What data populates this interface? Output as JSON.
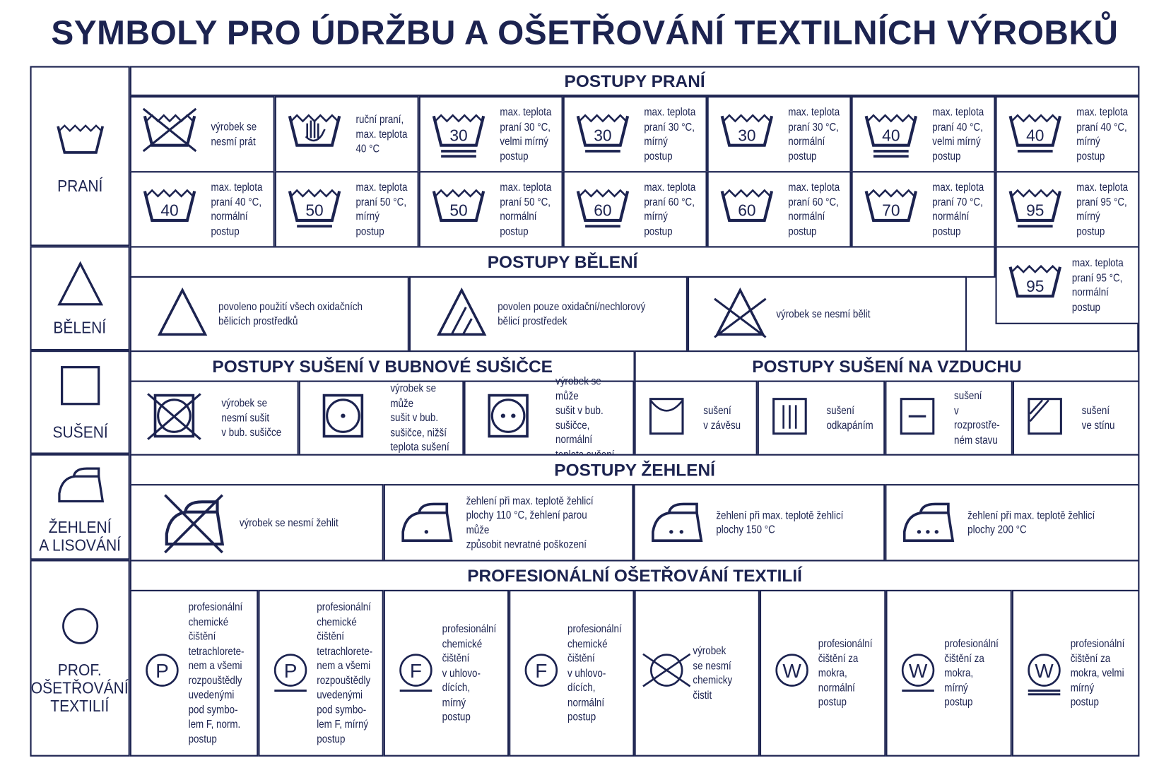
{
  "title": "SYMBOLY PRO ÚDRŽBU A OŠETŘOVÁNÍ TEXTILNÍCH VÝROBKŮ",
  "colors": {
    "ink": "#1c2350",
    "background": "#ffffff"
  },
  "categories": [
    {
      "label": "PRANÍ",
      "icon": "washtub-icon"
    },
    {
      "label": "BĚLENÍ",
      "icon": "triangle-icon"
    },
    {
      "label": "SUŠENÍ",
      "icon": "square-icon"
    },
    {
      "label": "ŽEHLENÍ\nA LISOVÁNÍ",
      "icon": "iron-icon"
    },
    {
      "label": "PROF.\nOŠETŘOVÁNÍ\nTEXTILIÍ",
      "icon": "circle-icon"
    }
  ],
  "prani": {
    "header": "POSTUPY PRANÍ",
    "items": [
      {
        "symbol": {
          "type": "tub",
          "cross": true
        },
        "text": "výrobek se\nnesmí prát"
      },
      {
        "symbol": {
          "type": "tub",
          "hand": true
        },
        "text": "ruční praní,\nmax. teplota\n40 °C"
      },
      {
        "symbol": {
          "type": "tub",
          "temp": "30",
          "bars": 2
        },
        "text": "max. teplota\npraní 30 °C,\nvelmi mírný\npostup"
      },
      {
        "symbol": {
          "type": "tub",
          "temp": "30",
          "bars": 1
        },
        "text": "max. teplota\npraní 30 °C,\nmírný postup"
      },
      {
        "symbol": {
          "type": "tub",
          "temp": "30",
          "bars": 0
        },
        "text": "max. teplota\npraní 30 °C,\nnormální\npostup"
      },
      {
        "symbol": {
          "type": "tub",
          "temp": "40",
          "bars": 2
        },
        "text": "max. teplota\npraní 40 °C,\nvelmi mírný\npostup"
      },
      {
        "symbol": {
          "type": "tub",
          "temp": "40",
          "bars": 1
        },
        "text": "max. teplota\npraní 40 °C,\nmírný postup"
      },
      {
        "symbol": {
          "type": "tub",
          "temp": "40",
          "bars": 0
        },
        "text": "max. teplota\npraní 40 °C,\nnormální\npostup"
      },
      {
        "symbol": {
          "type": "tub",
          "temp": "50",
          "bars": 1
        },
        "text": "max. teplota\npraní 50 °C,\nmírný postup"
      },
      {
        "symbol": {
          "type": "tub",
          "temp": "50",
          "bars": 0
        },
        "text": "max. teplota\npraní 50 °C,\nnormální\npostup"
      },
      {
        "symbol": {
          "type": "tub",
          "temp": "60",
          "bars": 1
        },
        "text": "max. teplota\npraní 60 °C,\nmírný postup"
      },
      {
        "symbol": {
          "type": "tub",
          "temp": "60",
          "bars": 0
        },
        "text": "max. teplota\npraní 60 °C,\nnormální\npostup"
      },
      {
        "symbol": {
          "type": "tub",
          "temp": "70",
          "bars": 0
        },
        "text": "max. teplota\npraní 70 °C,\nnormální\npostup"
      },
      {
        "symbol": {
          "type": "tub",
          "temp": "95",
          "bars": 1
        },
        "text": "max. teplota\npraní 95 °C,\nmírný postup"
      },
      {
        "symbol": {
          "type": "tub",
          "temp": "95",
          "bars": 0
        },
        "text": "max. teplota\npraní 95 °C,\nnormální\npostup"
      }
    ]
  },
  "beleni": {
    "header": "POSTUPY BĚLENÍ",
    "items": [
      {
        "symbol": {
          "type": "triangle"
        },
        "text": "povoleno použití všech oxidačních\nbělicích prostředků"
      },
      {
        "symbol": {
          "type": "triangle",
          "stripes": true
        },
        "text": "povolen pouze oxidační/nechlorový\nbělicí prostředek"
      },
      {
        "symbol": {
          "type": "triangle",
          "cross": true
        },
        "text": "výrobek se nesmí bělit"
      }
    ]
  },
  "suseni": {
    "header_tumble": "POSTUPY SUŠENÍ V BUBNOVÉ SUŠIČCE",
    "header_air": "POSTUPY SUŠENÍ NA VZDUCHU",
    "items": [
      {
        "symbol": {
          "type": "tumble",
          "cross": true
        },
        "text": "výrobek se\nnesmí sušit\nv bub. sušičce"
      },
      {
        "symbol": {
          "type": "tumble",
          "dots": 1
        },
        "text": "výrobek se může\nsušit v bub.\nsušičce, nižší\nteplota sušení"
      },
      {
        "symbol": {
          "type": "tumble",
          "dots": 2
        },
        "text": "výrobek se může\nsušit v bub.\nsušičce, normální\nteplota sušení"
      },
      {
        "symbol": {
          "type": "air",
          "mode": "hang"
        },
        "text": "sušení\nv závěsu"
      },
      {
        "symbol": {
          "type": "air",
          "mode": "drip"
        },
        "text": "sušení\nodkapáním"
      },
      {
        "symbol": {
          "type": "air",
          "mode": "flat"
        },
        "text": "sušení\nv rozprostře-\nném stavu"
      },
      {
        "symbol": {
          "type": "air",
          "mode": "shade"
        },
        "text": "sušení\nve stínu"
      }
    ]
  },
  "zehleni": {
    "header": "POSTUPY ŽEHLENÍ",
    "items": [
      {
        "symbol": {
          "type": "iron",
          "cross": true
        },
        "text": "výrobek se nesmí žehlit"
      },
      {
        "symbol": {
          "type": "iron",
          "dots": 1
        },
        "text": "žehlení při max. teplotě žehlicí\nplochy 110 °C, žehlení parou může\nzpůsobit nevratné poškození"
      },
      {
        "symbol": {
          "type": "iron",
          "dots": 2
        },
        "text": "žehlení při max. teplotě žehlicí\nplochy 150 °C"
      },
      {
        "symbol": {
          "type": "iron",
          "dots": 3
        },
        "text": "žehlení při max. teplotě žehlicí\nplochy 200 °C"
      }
    ]
  },
  "prof": {
    "header": "PROFESIONÁLNÍ OŠETŘOVÁNÍ TEXTILIÍ",
    "items": [
      {
        "symbol": {
          "type": "prof",
          "letter": "P",
          "bars": 0
        },
        "text": "profesionální\nchemické\nčištění\ntetrachlorete-\nnem a všemi\nrozpouštědly\nuvedenými\npod symbo-\nlem F, norm.\npostup"
      },
      {
        "symbol": {
          "type": "prof",
          "letter": "P",
          "bars": 1
        },
        "text": "profesionální\nchemické\nčištění\ntetrachlorete-\nnem a všemi\nrozpouštědly\nuvedenými\npod symbo-\nlem F, mírný\npostup"
      },
      {
        "symbol": {
          "type": "prof",
          "letter": "F",
          "bars": 1
        },
        "text": "profesionální\nchemické\nčištění\nv uhlovo-\ndících,\nmírný\npostup"
      },
      {
        "symbol": {
          "type": "prof",
          "letter": "F",
          "bars": 0
        },
        "text": "profesionální\nchemické\nčištění\nv uhlovo-\ndících,\nnormální\npostup"
      },
      {
        "symbol": {
          "type": "prof",
          "cross": true
        },
        "text": "výrobek\nse nesmí\nchemicky\nčistit"
      },
      {
        "symbol": {
          "type": "prof",
          "letter": "W",
          "bars": 0
        },
        "text": "profesionální\nčištění za\nmokra,\nnormální\npostup"
      },
      {
        "symbol": {
          "type": "prof",
          "letter": "W",
          "bars": 1
        },
        "text": "profesionální\nčištění za\nmokra,\nmírný\npostup"
      },
      {
        "symbol": {
          "type": "prof",
          "letter": "W",
          "bars": 2
        },
        "text": "profesionální\nčištění za\nmokra, velmi\nmírný\npostup"
      }
    ]
  }
}
